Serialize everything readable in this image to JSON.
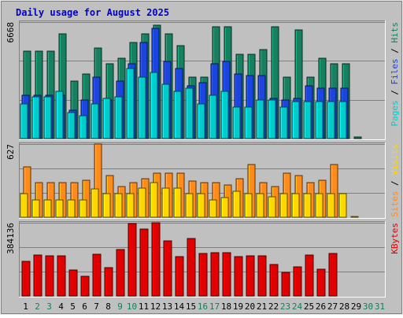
{
  "chart_data": {
    "type": "bar",
    "title": "Daily usage for August 2025",
    "days": [
      "1",
      "2",
      "3",
      "4",
      "5",
      "6",
      "7",
      "8",
      "9",
      "10",
      "11",
      "12",
      "13",
      "14",
      "15",
      "16",
      "17",
      "18",
      "19",
      "20",
      "21",
      "22",
      "23",
      "24",
      "25",
      "26",
      "27",
      "28",
      "29",
      "30",
      "31"
    ],
    "weekend_days": [
      2,
      3,
      9,
      10,
      16,
      17,
      23,
      24,
      30,
      31
    ],
    "panels": [
      {
        "name": "hits-files-pages",
        "max_label": "6668",
        "max": 6668,
        "ylabel_parts": [
          "Pages",
          " / ",
          "Files",
          " / ",
          "Hits"
        ],
        "ylabel_colors": [
          "#00cccc",
          "#000000",
          "#1b44e0",
          "#000000",
          "#168060"
        ],
        "series": [
          {
            "name": "Hits",
            "color": "#168060",
            "values": [
              5000,
              5000,
              5000,
              6000,
              3300,
              3700,
              5200,
              4300,
              4600,
              5500,
              6000,
              6500,
              6000,
              5300,
              3500,
              3500,
              6400,
              6400,
              4800,
              4800,
              5100,
              6400,
              3500,
              6200,
              3500,
              4600,
              4300,
              4300,
              80,
              0,
              0
            ]
          },
          {
            "name": "Files",
            "color": "#1b44e0",
            "values": [
              2500,
              2500,
              2500,
              2500,
              1600,
              2200,
              3500,
              2200,
              3300,
              4300,
              5500,
              6300,
              4400,
              4000,
              3000,
              3200,
              4300,
              4400,
              3700,
              3600,
              3600,
              2300,
              2200,
              2300,
              3000,
              2900,
              2900,
              2900,
              0,
              0,
              0
            ]
          },
          {
            "name": "Pages",
            "color": "#00cccc",
            "values": [
              2000,
              2400,
              2400,
              2700,
              1500,
              1300,
              2000,
              2300,
              2400,
              4000,
              3500,
              3800,
              3100,
              2700,
              2900,
              2000,
              2500,
              2700,
              1800,
              1800,
              2200,
              2200,
              1800,
              2100,
              2100,
              2100,
              2100,
              2100,
              0,
              0,
              0
            ]
          }
        ]
      },
      {
        "name": "visits-sites",
        "max_label": "627",
        "max": 627,
        "ylabel_parts": [
          "Sites",
          " / ",
          "Visits"
        ],
        "ylabel_colors": [
          "#ff8c1a",
          "#000000",
          "#ffd700"
        ],
        "series": [
          {
            "name": "Visits",
            "color": "#ff8c1a",
            "values": [
              434,
              300,
              300,
              300,
              300,
              320,
              627,
              360,
              265,
              300,
              330,
              375,
              375,
              375,
              310,
              300,
              300,
              275,
              330,
              450,
              300,
              260,
              375,
              360,
              300,
              315,
              450,
              0,
              0,
              0,
              0
            ]
          },
          {
            "name": "Sites",
            "color": "#ffd700",
            "values": [
              200,
              150,
              150,
              150,
              150,
              150,
              240,
              200,
              200,
              200,
              250,
              300,
              250,
              250,
              200,
              200,
              150,
              170,
              220,
              200,
              200,
              175,
              200,
              200,
              200,
              200,
              200,
              200,
              10,
              0,
              0
            ]
          }
        ]
      },
      {
        "name": "kbytes",
        "max_label": "384136",
        "max": 384136,
        "ylabel_parts": [
          "KBytes"
        ],
        "ylabel_colors": [
          "#e00000"
        ],
        "series": [
          {
            "name": "KBytes",
            "color": "#e00000",
            "values": [
              180000,
              215000,
              210000,
              210000,
              136000,
              105000,
              220000,
              150000,
              245000,
              379000,
              350000,
              384000,
              289000,
              205000,
              301000,
              225000,
              228000,
              228000,
              205000,
              210000,
              210000,
              165000,
              125000,
              152000,
              213000,
              140000,
              225000,
              0,
              0,
              0,
              0
            ]
          }
        ]
      }
    ]
  }
}
